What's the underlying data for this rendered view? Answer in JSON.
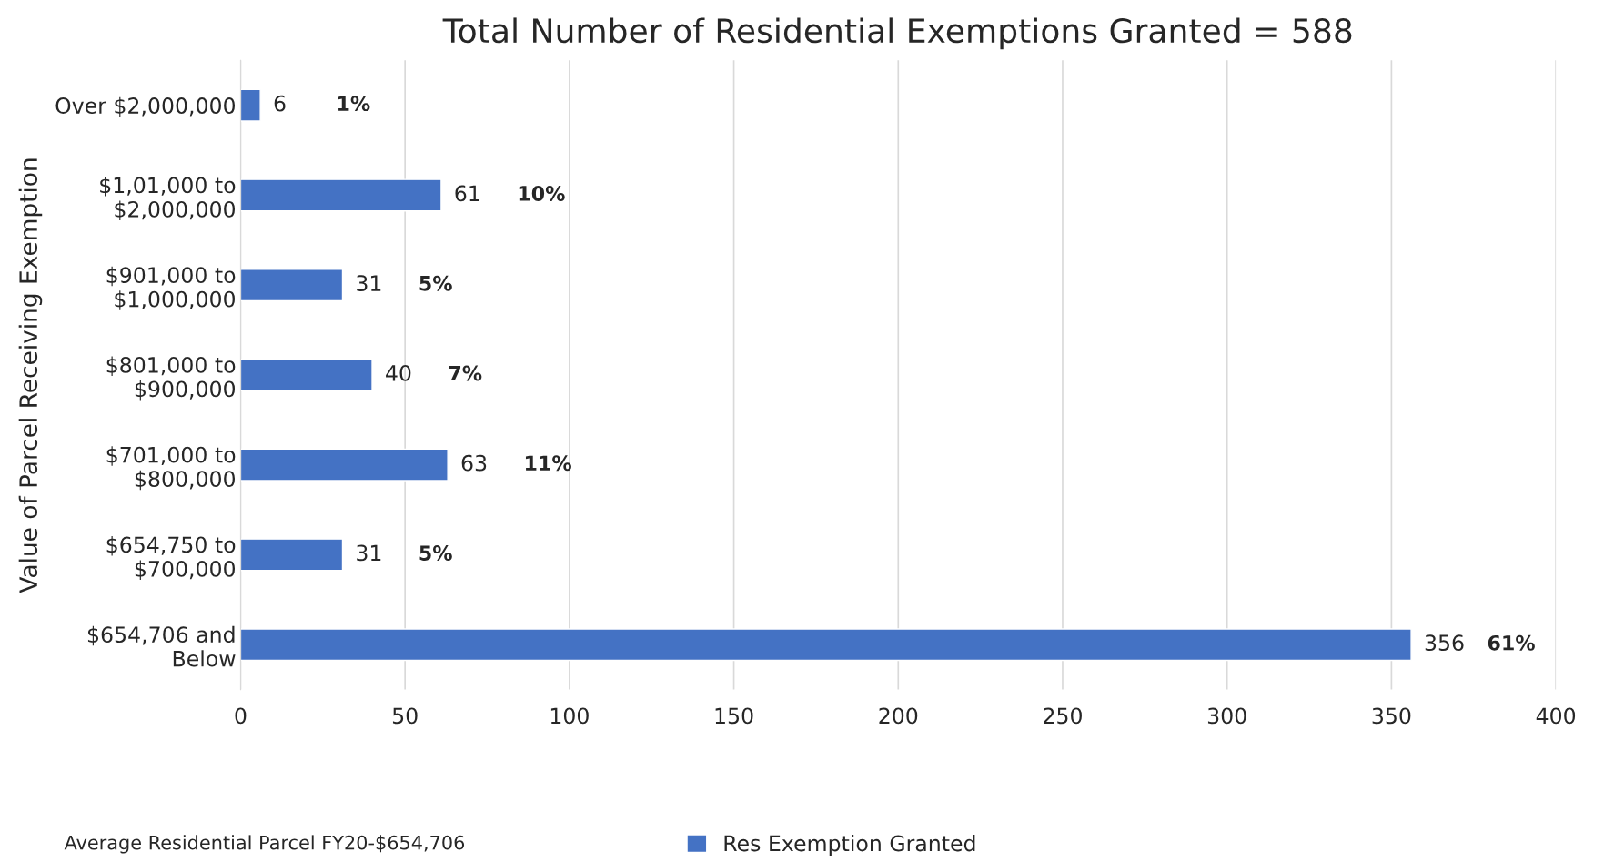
{
  "chart_data": {
    "type": "bar",
    "orientation": "horizontal",
    "title": "Total Number of Residential Exemptions Granted = 588",
    "ylabel": "Value of Parcel Receiving Exemption",
    "categories": [
      "Over $2,000,000",
      "$1,01,000 to\n$2,000,000",
      "$901,000 to\n$1,000,000",
      "$801,000 to\n$900,000",
      "$701,000 to\n$800,000",
      "$654,750 to\n$700,000",
      "$654,706 and\nBelow"
    ],
    "series": [
      {
        "name": "Res Exemption Granted",
        "color": "#4472c4",
        "values": [
          6,
          61,
          31,
          40,
          63,
          31,
          356
        ]
      }
    ],
    "xlim": [
      0,
      400
    ],
    "xticks": [
      0,
      50,
      100,
      150,
      200,
      250,
      300,
      350,
      400
    ],
    "grid": "x",
    "legend": "bottom",
    "data_labels": true,
    "annotations": [
      "1%",
      "10%",
      "5%",
      "7%",
      "11%",
      "5%",
      "61%",
      "Average Residential Parcel FY20-$654,706"
    ]
  }
}
